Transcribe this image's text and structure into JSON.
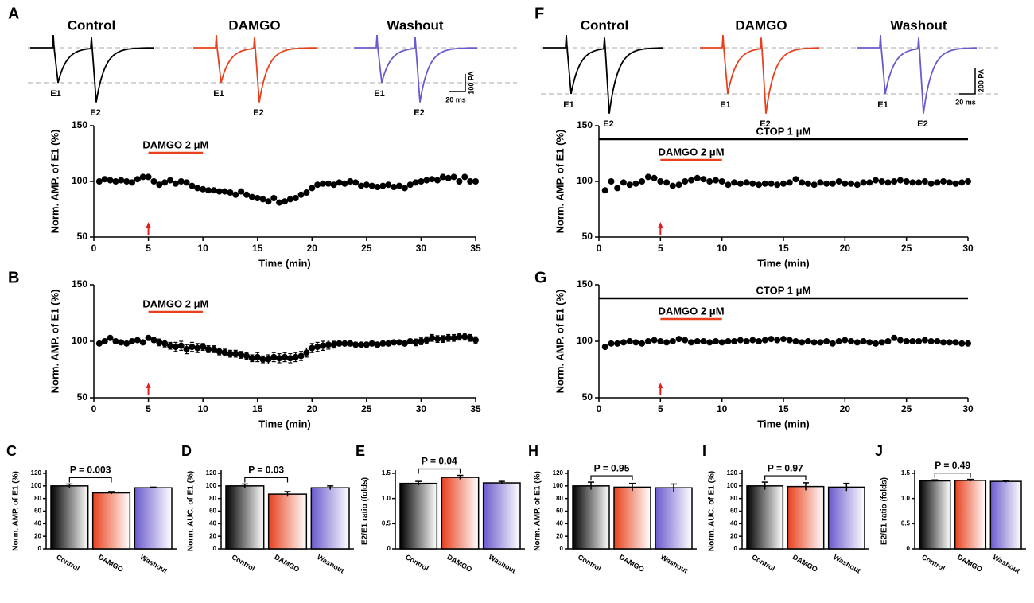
{
  "chart_data": [
    {
      "type": "scatter",
      "panel": "A",
      "xlabel": "Time (min)",
      "ylabel": "Norm. AMP. of E1 (%)",
      "xlim": [
        0,
        35
      ],
      "ylim": [
        50,
        150
      ],
      "xticks": [
        0,
        5,
        10,
        15,
        20,
        25,
        30,
        35
      ],
      "yticks": [
        50,
        100,
        150
      ],
      "x": [
        0.5,
        1,
        1.5,
        2,
        2.5,
        3,
        3.5,
        4,
        4.5,
        5,
        5.5,
        6,
        6.5,
        7,
        7.5,
        8,
        8.5,
        9,
        9.5,
        10,
        10.5,
        11,
        11.5,
        12,
        12.5,
        13,
        13.5,
        14,
        14.5,
        15,
        15.5,
        16,
        16.5,
        17,
        17.5,
        18,
        18.5,
        19,
        19.5,
        20,
        20.5,
        21,
        21.5,
        22,
        22.5,
        23,
        23.5,
        24,
        24.5,
        25,
        25.5,
        26,
        26.5,
        27,
        27.5,
        28,
        28.5,
        29,
        29.5,
        30,
        30.5,
        31,
        31.5,
        32,
        32.5,
        33,
        33.5,
        34,
        34.5,
        35
      ],
      "values": [
        100,
        102,
        101,
        100,
        101,
        100,
        99,
        102,
        104,
        104,
        100,
        97,
        99,
        101,
        98,
        100,
        99,
        96,
        94,
        93,
        92,
        92,
        91,
        91,
        90,
        88,
        91,
        88,
        86,
        85,
        84,
        82,
        85,
        81,
        82,
        84,
        85,
        88,
        90,
        94,
        97,
        98,
        98,
        97,
        99,
        98,
        100,
        99,
        96,
        97,
        96,
        95,
        96,
        97,
        95,
        96,
        94,
        97,
        99,
        100,
        101,
        102,
        101,
        104,
        103,
        104,
        100,
        104,
        100,
        100
      ],
      "color": "#000000",
      "bars": [
        {
          "label": "DAMGO 2 μM",
          "start": 5,
          "end": 10,
          "color": "#e8401c"
        }
      ],
      "arrow_x": 5,
      "arrow_color": "#e02020"
    },
    {
      "type": "scatter",
      "panel": "B",
      "xlabel": "Time (min)",
      "ylabel": "Norm. AMP. of E1 (%)",
      "xlim": [
        0,
        35
      ],
      "ylim": [
        50,
        150
      ],
      "xticks": [
        0,
        5,
        10,
        15,
        20,
        25,
        30,
        35
      ],
      "yticks": [
        50,
        100,
        150
      ],
      "x": [
        0.5,
        1,
        1.5,
        2,
        2.5,
        3,
        3.5,
        4,
        4.5,
        5,
        5.5,
        6,
        6.5,
        7,
        7.5,
        8,
        8.5,
        9,
        9.5,
        10,
        10.5,
        11,
        11.5,
        12,
        12.5,
        13,
        13.5,
        14,
        14.5,
        15,
        15.5,
        16,
        16.5,
        17,
        17.5,
        18,
        18.5,
        19,
        19.5,
        20,
        20.5,
        21,
        21.5,
        22,
        22.5,
        23,
        23.5,
        24,
        24.5,
        25,
        25.5,
        26,
        26.5,
        27,
        27.5,
        28,
        28.5,
        29,
        29.5,
        30,
        30.5,
        31,
        31.5,
        32,
        32.5,
        33,
        33.5,
        34,
        34.5,
        35
      ],
      "values": [
        98,
        100,
        103,
        100,
        99,
        98,
        100,
        101,
        99,
        103,
        101,
        99,
        98,
        96,
        95,
        96,
        93,
        95,
        94,
        95,
        93,
        93,
        91,
        90,
        89,
        89,
        88,
        87,
        85,
        86,
        84,
        84,
        86,
        85,
        86,
        85,
        86,
        87,
        90,
        94,
        95,
        96,
        97,
        97,
        98,
        98,
        98,
        97,
        97,
        97,
        98,
        97,
        98,
        98,
        99,
        99,
        98,
        100,
        99,
        100,
        101,
        103,
        102,
        102,
        103,
        103,
        104,
        104,
        103,
        101
      ],
      "errors": [
        1,
        1,
        1,
        1,
        1,
        1,
        1,
        1,
        1,
        1,
        2,
        3,
        3,
        3,
        4,
        4,
        4,
        4,
        4,
        3,
        3,
        3,
        3,
        3,
        3,
        3,
        3,
        3,
        3,
        4,
        3,
        4,
        4,
        4,
        4,
        4,
        4,
        4,
        4,
        4,
        4,
        4,
        4,
        3,
        2,
        2,
        2,
        2,
        2,
        2,
        2,
        2,
        2,
        2,
        2,
        2,
        2,
        2,
        3,
        3,
        3,
        3,
        3,
        3,
        3,
        3,
        3,
        3,
        3,
        3
      ],
      "color": "#000000",
      "bars": [
        {
          "label": "DAMGO 2 μM",
          "start": 5,
          "end": 10,
          "color": "#e8401c"
        }
      ],
      "arrow_x": 5,
      "arrow_color": "#e02020"
    },
    {
      "type": "scatter",
      "panel": "F",
      "xlabel": "Time (min)",
      "ylabel": "Norm. AMP. of E1 (%)",
      "xlim": [
        0,
        30
      ],
      "ylim": [
        50,
        150
      ],
      "xticks": [
        0,
        5,
        10,
        15,
        20,
        25,
        30
      ],
      "yticks": [
        50,
        100,
        150
      ],
      "x": [
        0.5,
        1,
        1.5,
        2,
        2.5,
        3,
        3.5,
        4,
        4.5,
        5,
        5.5,
        6,
        6.5,
        7,
        7.5,
        8,
        8.5,
        9,
        9.5,
        10,
        10.5,
        11,
        11.5,
        12,
        12.5,
        13,
        13.5,
        14,
        14.5,
        15,
        15.5,
        16,
        16.5,
        17,
        17.5,
        18,
        18.5,
        19,
        19.5,
        20,
        20.5,
        21,
        21.5,
        22,
        22.5,
        23,
        23.5,
        24,
        24.5,
        25,
        25.5,
        26,
        26.5,
        27,
        27.5,
        28,
        28.5,
        29,
        29.5,
        30
      ],
      "values": [
        92,
        100,
        94,
        99,
        97,
        98,
        100,
        104,
        103,
        100,
        99,
        96,
        97,
        100,
        101,
        103,
        102,
        100,
        101,
        100,
        97,
        99,
        98,
        99,
        98,
        97,
        98,
        98,
        97,
        98,
        99,
        102,
        99,
        98,
        97,
        99,
        98,
        98,
        100,
        98,
        98,
        97,
        99,
        99,
        101,
        100,
        99,
        100,
        101,
        100,
        99,
        99,
        100,
        98,
        99,
        100,
        99,
        98,
        99,
        100
      ],
      "color": "#000000",
      "bars": [
        {
          "label": "CTOP 1 μM",
          "start": 0,
          "end": 30,
          "color": "#000000"
        },
        {
          "label": "DAMGO 2 μM",
          "start": 5,
          "end": 10,
          "color": "#e8401c"
        }
      ],
      "arrow_x": 5,
      "arrow_color": "#e02020"
    },
    {
      "type": "scatter",
      "panel": "G",
      "xlabel": "Time (min)",
      "ylabel": "Norm. AMP. of E1 (%)",
      "xlim": [
        0,
        30
      ],
      "ylim": [
        50,
        150
      ],
      "xticks": [
        0,
        5,
        10,
        15,
        20,
        25,
        30
      ],
      "yticks": [
        50,
        100,
        150
      ],
      "x": [
        0.5,
        1,
        1.5,
        2,
        2.5,
        3,
        3.5,
        4,
        4.5,
        5,
        5.5,
        6,
        6.5,
        7,
        7.5,
        8,
        8.5,
        9,
        9.5,
        10,
        10.5,
        11,
        11.5,
        12,
        12.5,
        13,
        13.5,
        14,
        14.5,
        15,
        15.5,
        16,
        16.5,
        17,
        17.5,
        18,
        18.5,
        19,
        19.5,
        20,
        20.5,
        21,
        21.5,
        22,
        22.5,
        23,
        23.5,
        24,
        24.5,
        25,
        25.5,
        26,
        26.5,
        27,
        27.5,
        28,
        28.5,
        29,
        29.5,
        30
      ],
      "values": [
        95,
        98,
        98,
        99,
        100,
        99,
        98,
        100,
        101,
        100,
        99,
        100,
        102,
        101,
        99,
        100,
        100,
        99,
        100,
        99,
        100,
        100,
        101,
        100,
        101,
        100,
        101,
        102,
        101,
        102,
        101,
        100,
        99,
        100,
        99,
        99,
        100,
        98,
        100,
        101,
        100,
        99,
        100,
        99,
        98,
        99,
        100,
        103,
        101,
        100,
        100,
        100,
        101,
        100,
        100,
        99,
        99,
        99,
        98,
        98
      ],
      "color": "#000000",
      "bars": [
        {
          "label": "CTOP 1 μM",
          "start": 0,
          "end": 30,
          "color": "#000000"
        },
        {
          "label": "DAMGO 2 μM",
          "start": 5,
          "end": 10,
          "color": "#e8401c"
        }
      ],
      "arrow_x": 5,
      "arrow_color": "#e02020"
    },
    {
      "type": "bar",
      "panel": "C",
      "ylabel": "Norm. AMP. of E1 (%)",
      "categories": [
        "Control",
        "DAMGO",
        "Washout"
      ],
      "values": [
        100,
        89,
        97
      ],
      "errors": [
        3,
        2,
        1
      ],
      "colors": [
        "#000000",
        "#e8401c",
        "#6a5acd"
      ],
      "ylim": [
        0,
        120
      ],
      "yticks": [
        0,
        20,
        40,
        60,
        80,
        100,
        120
      ],
      "pvalue": "P = 0.003"
    },
    {
      "type": "bar",
      "panel": "D",
      "ylabel": "Norm. AUC. of E1 (%)",
      "categories": [
        "Control",
        "DAMGO",
        "Washout"
      ],
      "values": [
        100,
        87,
        97
      ],
      "errors": [
        3,
        4,
        3
      ],
      "colors": [
        "#000000",
        "#e8401c",
        "#6a5acd"
      ],
      "ylim": [
        0,
        120
      ],
      "yticks": [
        0,
        20,
        40,
        60,
        80,
        100,
        120
      ],
      "pvalue": "P = 0.03"
    },
    {
      "type": "bar",
      "panel": "E",
      "ylabel": "E2/E1 ratio (folds)",
      "categories": [
        "Control",
        "DAMGO",
        "Washout"
      ],
      "values": [
        1.3,
        1.42,
        1.31
      ],
      "errors": [
        0.04,
        0.04,
        0.03
      ],
      "colors": [
        "#000000",
        "#e8401c",
        "#6a5acd"
      ],
      "ylim": [
        0,
        1.5
      ],
      "yticks": [
        0,
        0.5,
        {
          "value": 1,
          "label": "1.0"
        },
        {
          "value": 1.5,
          "label": "1.5"
        }
      ],
      "pvalue": "P = 0.04"
    },
    {
      "type": "bar",
      "panel": "H",
      "ylabel": "Norm. AMP. of E1 (%)",
      "categories": [
        "Control",
        "DAMGO",
        "Washout"
      ],
      "values": [
        100,
        98,
        97
      ],
      "errors": [
        6,
        6,
        6
      ],
      "colors": [
        "#000000",
        "#e8401c",
        "#6a5acd"
      ],
      "ylim": [
        0,
        120
      ],
      "yticks": [
        0,
        20,
        40,
        60,
        80,
        100,
        120
      ],
      "pvalue": "P = 0.95"
    },
    {
      "type": "bar",
      "panel": "I",
      "ylabel": "Norm. AUC. of E1 (%)",
      "categories": [
        "Control",
        "DAMGO",
        "Washout"
      ],
      "values": [
        100,
        99,
        98
      ],
      "errors": [
        6,
        6,
        6
      ],
      "colors": [
        "#000000",
        "#e8401c",
        "#6a5acd"
      ],
      "ylim": [
        0,
        120
      ],
      "yticks": [
        0,
        20,
        40,
        60,
        80,
        100,
        120
      ],
      "pvalue": "P = 0.97"
    },
    {
      "type": "bar",
      "panel": "J",
      "ylabel": "E2/E1 ratio (folds)",
      "categories": [
        "Control",
        "DAMGO",
        "Washout"
      ],
      "values": [
        1.35,
        1.36,
        1.34
      ],
      "errors": [
        0.02,
        0.02,
        0.02
      ],
      "colors": [
        "#000000",
        "#e8401c",
        "#6a5acd"
      ],
      "ylim": [
        0,
        1.5
      ],
      "yticks": [
        0,
        0.5,
        {
          "value": 1,
          "label": "1.0"
        },
        {
          "value": 1.5,
          "label": "1.5"
        }
      ],
      "pvalue": "P = 0.49"
    }
  ],
  "traces": [
    {
      "conditions": [
        "Control",
        "DAMGO",
        "Washout"
      ],
      "colors": [
        "#000000",
        "#e8401c",
        "#6a5acd"
      ],
      "peaks": [
        "E1",
        "E2"
      ],
      "scale": [
        "100 PA",
        "20 ms"
      ]
    },
    {
      "conditions": [
        "Control",
        "DAMGO",
        "Washout"
      ],
      "colors": [
        "#000000",
        "#e8401c",
        "#6a5acd"
      ],
      "peaks": [
        "E1",
        "E2"
      ],
      "scale": [
        "200 PA",
        "20 ms"
      ]
    }
  ]
}
